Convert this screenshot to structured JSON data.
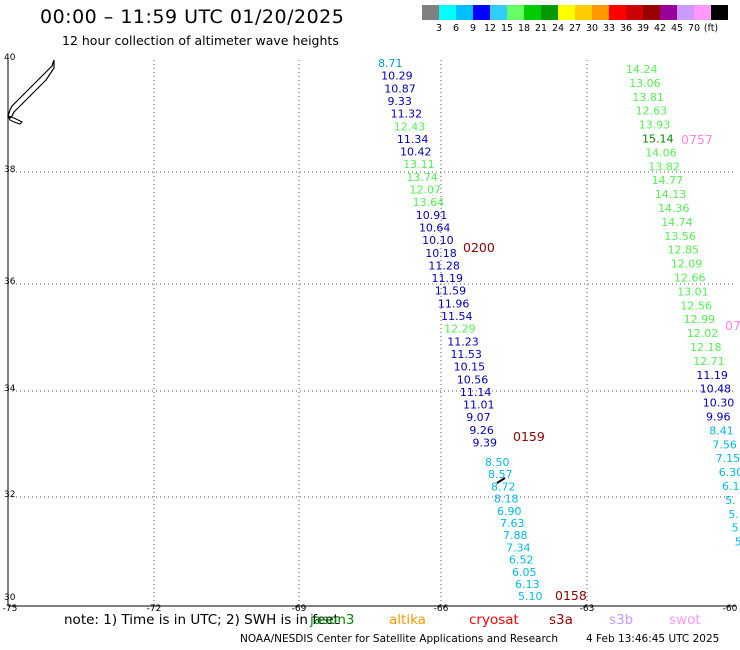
{
  "title": "00:00 – 11:59 UTC 01/20/2025",
  "subtitle": "12 hour collection of altimeter wave heights",
  "legend": {
    "labels": [
      "3",
      "6",
      "9",
      "12",
      "15",
      "18",
      "21",
      "24",
      "27",
      "30",
      "33",
      "36",
      "39",
      "42",
      "45",
      "70",
      "(ft)"
    ],
    "colors": [
      "#808080",
      "#00ffff",
      "#00bfff",
      "#0000ff",
      "#33ccff",
      "#66ff66",
      "#00cc00",
      "#009900",
      "#ffff00",
      "#ffcc00",
      "#ff9900",
      "#ff0000",
      "#cc0000",
      "#990000",
      "#990099",
      "#cc99ff",
      "#ff99ff",
      "#000000"
    ]
  },
  "axes": {
    "lon_labels": [
      "-75",
      "-72",
      "-69",
      "-66",
      "-63",
      "-60"
    ],
    "lat_labels": [
      "40",
      "38",
      "36",
      "34",
      "32",
      "30"
    ]
  },
  "tracks": [
    {
      "color_key": "mixed",
      "time_label": "0200",
      "time_label_color": "#8b0000",
      "points": [
        {
          "v": "8.71",
          "c": "#0099cc"
        },
        {
          "v": "10.29",
          "c": "#0000bb"
        },
        {
          "v": "10.87",
          "c": "#0000bb"
        },
        {
          "v": "9.33",
          "c": "#0000bb"
        },
        {
          "v": "11.32",
          "c": "#0000bb"
        },
        {
          "v": "12.43",
          "c": "#55ee55"
        },
        {
          "v": "11.34",
          "c": "#0000bb"
        },
        {
          "v": "10.42",
          "c": "#0000bb"
        },
        {
          "v": "13.11",
          "c": "#55ee55"
        },
        {
          "v": "13.74",
          "c": "#55ee55"
        },
        {
          "v": "12.07",
          "c": "#55ee55"
        },
        {
          "v": "13.64",
          "c": "#55ee55"
        },
        {
          "v": "10.91",
          "c": "#0000bb"
        },
        {
          "v": "10.64",
          "c": "#0000bb"
        },
        {
          "v": "10.10",
          "c": "#0000bb"
        },
        {
          "v": "10.18",
          "c": "#0000bb"
        },
        {
          "v": "11.28",
          "c": "#0000bb"
        },
        {
          "v": "11.19",
          "c": "#0000bb"
        },
        {
          "v": "11.59",
          "c": "#0000bb"
        },
        {
          "v": "11.96",
          "c": "#0000bb"
        },
        {
          "v": "11.54",
          "c": "#0000bb"
        },
        {
          "v": "12.29",
          "c": "#55ee55"
        },
        {
          "v": "11.23",
          "c": "#0000bb"
        },
        {
          "v": "11.53",
          "c": "#0000bb"
        },
        {
          "v": "10.15",
          "c": "#0000bb"
        },
        {
          "v": "10.56",
          "c": "#0000bb"
        },
        {
          "v": "11.14",
          "c": "#0000bb"
        },
        {
          "v": "11.01",
          "c": "#0000bb"
        },
        {
          "v": "9.07",
          "c": "#0000bb"
        },
        {
          "v": "9.26",
          "c": "#0000bb"
        },
        {
          "v": "9.39",
          "c": "#0000bb"
        }
      ]
    },
    {
      "color_key": "mixed",
      "time_label": "0159",
      "time_label_color": "#8b0000",
      "points": [
        {
          "v": "8.50",
          "c": "#00bbdd"
        },
        {
          "v": "8.57",
          "c": "#00bbdd"
        },
        {
          "v": "8.72",
          "c": "#00bbdd"
        },
        {
          "v": "8.18",
          "c": "#00bbdd"
        },
        {
          "v": "6.90",
          "c": "#00bbdd"
        },
        {
          "v": "7.63",
          "c": "#00bbdd"
        },
        {
          "v": "7.88",
          "c": "#00bbdd"
        },
        {
          "v": "7.34",
          "c": "#00bbdd"
        },
        {
          "v": "6.52",
          "c": "#00bbdd"
        },
        {
          "v": "6.05",
          "c": "#00bbdd"
        },
        {
          "v": "6.13",
          "c": "#00bbdd"
        },
        {
          "v": "5.10",
          "c": "#00bbdd"
        }
      ]
    },
    {
      "color_key": "mixed",
      "time_label": "0757",
      "time_label_color": "#ff88dd",
      "points": [
        {
          "v": "14.24",
          "c": "#55ee55"
        },
        {
          "v": "13.06",
          "c": "#55ee55"
        },
        {
          "v": "13.81",
          "c": "#55ee55"
        },
        {
          "v": "12.63",
          "c": "#55ee55"
        },
        {
          "v": "13.93",
          "c": "#55ee55"
        },
        {
          "v": "15.14",
          "c": "#008800"
        },
        {
          "v": "14.06",
          "c": "#55ee55"
        },
        {
          "v": "13.82",
          "c": "#55ee55"
        },
        {
          "v": "14.77",
          "c": "#55ee55"
        },
        {
          "v": "14.13",
          "c": "#55ee55"
        },
        {
          "v": "14.36",
          "c": "#55ee55"
        },
        {
          "v": "14.74",
          "c": "#55ee55"
        },
        {
          "v": "13.56",
          "c": "#55ee55"
        },
        {
          "v": "12.85",
          "c": "#55ee55"
        },
        {
          "v": "12.09",
          "c": "#55ee55"
        },
        {
          "v": "12.66",
          "c": "#55ee55"
        },
        {
          "v": "13.01",
          "c": "#55ee55"
        },
        {
          "v": "12.56",
          "c": "#55ee55"
        },
        {
          "v": "12.99",
          "c": "#55ee55"
        },
        {
          "v": "12.02",
          "c": "#55ee55"
        },
        {
          "v": "12.18",
          "c": "#55ee55"
        },
        {
          "v": "12.71",
          "c": "#55ee55"
        },
        {
          "v": "11.19",
          "c": "#0000bb"
        },
        {
          "v": "10.48",
          "c": "#0000bb"
        },
        {
          "v": "10.30",
          "c": "#0000bb"
        },
        {
          "v": "9.96",
          "c": "#0000bb"
        },
        {
          "v": "8.41",
          "c": "#00bbdd"
        },
        {
          "v": "7.56",
          "c": "#00bbdd"
        },
        {
          "v": "7.15",
          "c": "#00bbdd"
        },
        {
          "v": "6.30",
          "c": "#00bbdd"
        },
        {
          "v": "6.1",
          "c": "#00bbdd"
        },
        {
          "v": "5.",
          "c": "#00bbdd"
        },
        {
          "v": "5.",
          "c": "#00bbdd"
        },
        {
          "v": "5.",
          "c": "#00bbdd"
        },
        {
          "v": "5",
          "c": "#00bbdd"
        }
      ],
      "extra_time_label": "07",
      "extra_time_label_color": "#ff88dd"
    }
  ],
  "track_bottom_label": {
    "text": "0158",
    "color": "#8b0000"
  },
  "note": "note:  1) Time is in UTC; 2) SWH is in feet",
  "satellites": [
    {
      "name": "jason3",
      "color": "#008800"
    },
    {
      "name": "altika",
      "color": "#ff9900"
    },
    {
      "name": "cryosat",
      "color": "#ff0000"
    },
    {
      "name": "s3a",
      "color": "#8b0000"
    },
    {
      "name": "s3b",
      "color": "#cc99ff"
    },
    {
      "name": "swot",
      "color": "#ff99ff"
    }
  ],
  "footer_left": "NOAA/NESDIS Center for Satellite Applications and Research",
  "footer_right": "4 Feb 13:46:45 UTC 2025"
}
